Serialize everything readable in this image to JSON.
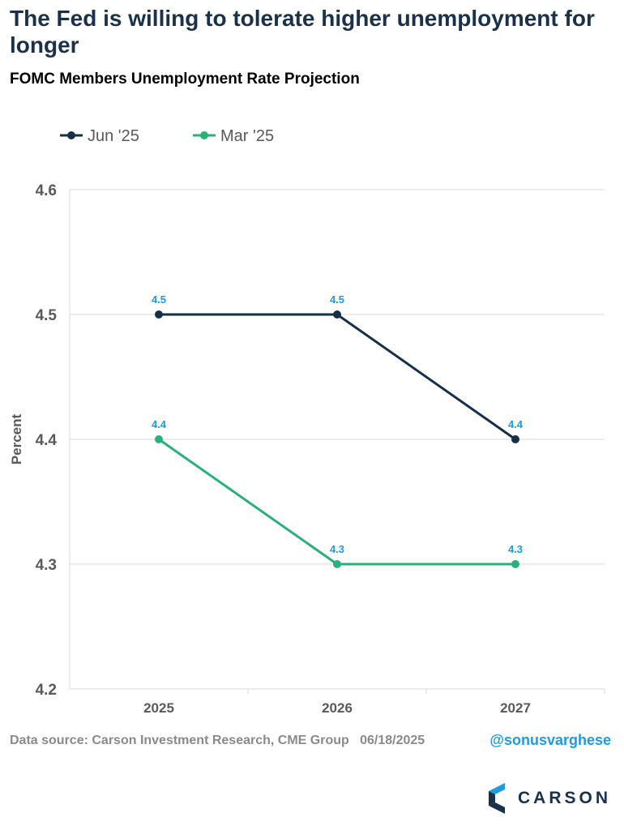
{
  "header": {
    "title": "The Fed is willing to tolerate higher unemployment for longer",
    "subtitle": "FOMC Members Unemployment Rate Projection"
  },
  "footer": {
    "source": "Data source: Carson Investment Research, CME Group",
    "date": "06/18/2025",
    "handle": "@sonusvarghese",
    "brand": "CARSON"
  },
  "colors": {
    "jun": "#16304a",
    "mar": "#2ab07a",
    "data_label": "#1e9be0",
    "grid": "#d9d9d9",
    "tick_label": "#595959"
  },
  "chart_data": {
    "type": "line",
    "title": "FOMC Members Unemployment Rate Projection",
    "xlabel": "",
    "ylabel": "Percent",
    "categories": [
      "2025",
      "2026",
      "2027"
    ],
    "ylim": [
      4.2,
      4.6
    ],
    "yticks": [
      "4.2",
      "4.3",
      "4.4",
      "4.5",
      "4.6"
    ],
    "grid": true,
    "legend_position": "top-left",
    "series": [
      {
        "name": "Jun '25",
        "values": [
          4.5,
          4.5,
          4.4
        ],
        "labels": [
          "4.5",
          "4.5",
          "4.4"
        ],
        "color": "#16304a"
      },
      {
        "name": "Mar '25",
        "values": [
          4.4,
          4.3,
          4.3
        ],
        "labels": [
          "4.4",
          "4.3",
          "4.3"
        ],
        "color": "#2ab07a"
      }
    ]
  }
}
